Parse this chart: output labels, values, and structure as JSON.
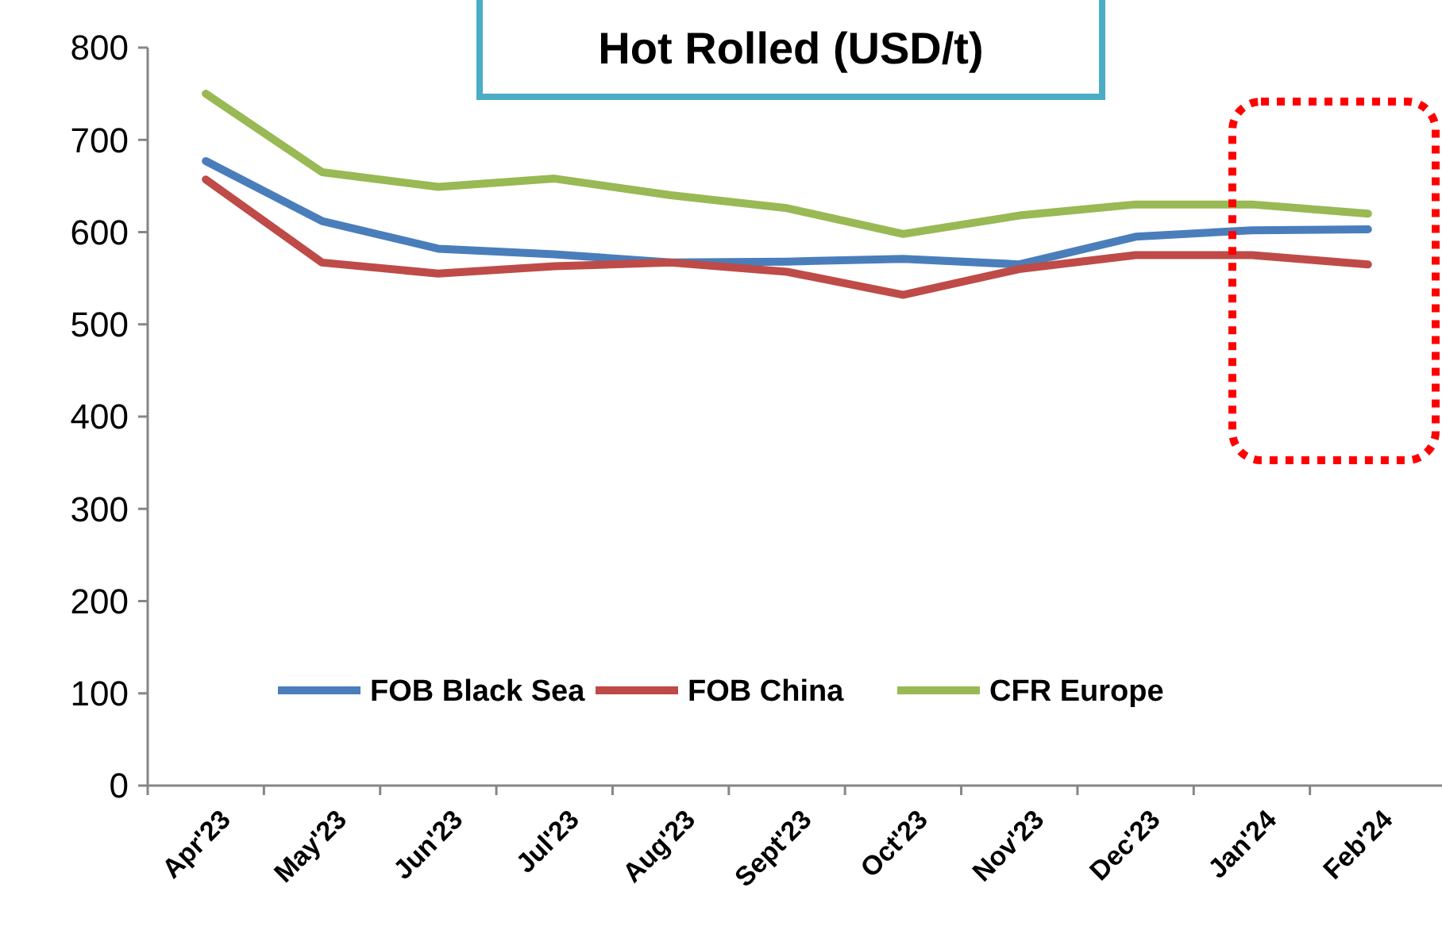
{
  "chart_data": {
    "type": "line",
    "title": "Hot Rolled (USD/t)",
    "categories": [
      "Apr'23",
      "May'23",
      "Jun'23",
      "Jul'23",
      "Aug'23",
      "Sept'23",
      "Oct'23",
      "Nov'23",
      "Dec'23",
      "Jan'24",
      "Feb'24"
    ],
    "series": [
      {
        "name": "FOB Black Sea",
        "color": "#4a7ebb",
        "values": [
          677,
          612,
          582,
          576,
          567,
          568,
          571,
          565,
          595,
          602,
          603
        ]
      },
      {
        "name": "FOB China",
        "color": "#be4b48",
        "values": [
          657,
          567,
          555,
          563,
          567,
          557,
          532,
          560,
          575,
          575,
          565
        ]
      },
      {
        "name": "CFR Europe",
        "color": "#98b954",
        "values": [
          750,
          665,
          649,
          658,
          640,
          626,
          598,
          618,
          630,
          630,
          620
        ]
      }
    ],
    "ylim": [
      0,
      800
    ],
    "yticks": [
      0,
      100,
      200,
      300,
      400,
      500,
      600,
      700,
      800
    ],
    "grid": false,
    "legend": "bottom",
    "marker": "none",
    "line_style": "solid"
  }
}
